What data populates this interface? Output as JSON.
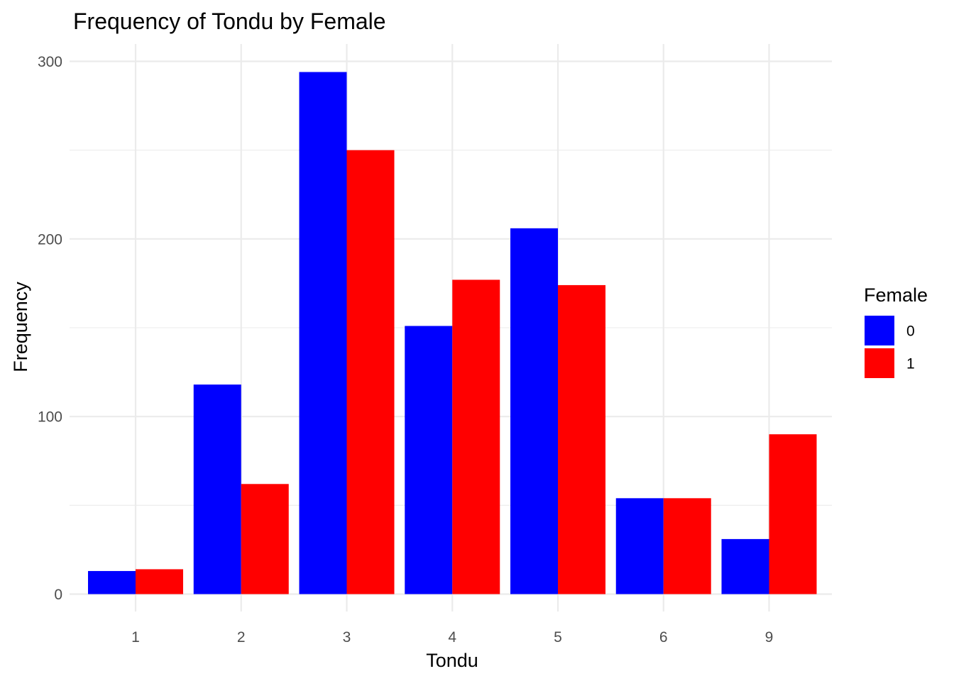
{
  "chart_data": {
    "type": "bar",
    "title": "Frequency of Tondu by Female",
    "xlabel": "Tondu",
    "ylabel": "Frequency",
    "categories": [
      "1",
      "2",
      "3",
      "4",
      "5",
      "6",
      "9"
    ],
    "series": [
      {
        "name": "0",
        "color": "#0000ff",
        "values": [
          13,
          118,
          294,
          151,
          206,
          54,
          31
        ]
      },
      {
        "name": "1",
        "color": "#ff0000",
        "values": [
          14,
          62,
          250,
          177,
          174,
          54,
          90
        ]
      }
    ],
    "ylim": [
      0,
      300
    ],
    "yticks": [
      0,
      100,
      200,
      300
    ],
    "grid": true,
    "legend": {
      "title": "Female",
      "position": "right"
    }
  }
}
